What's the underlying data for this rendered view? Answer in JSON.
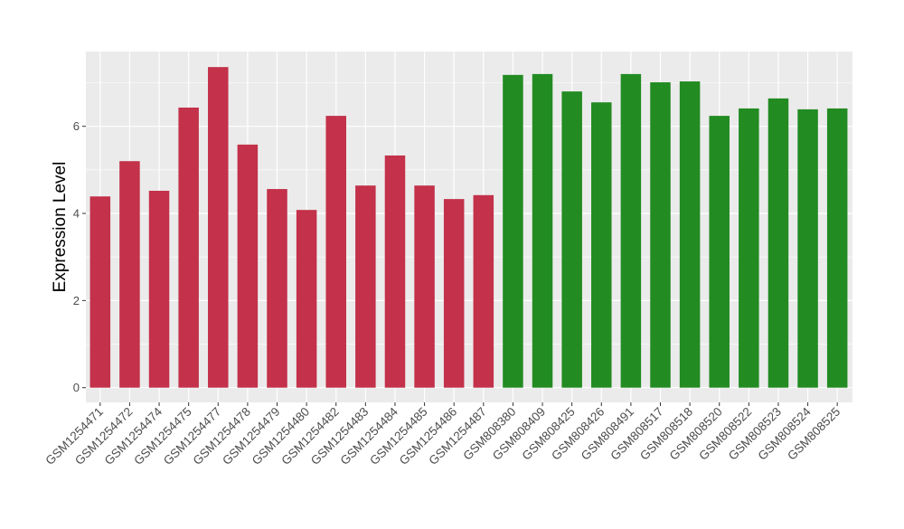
{
  "chart_data": {
    "type": "bar",
    "title": "",
    "xlabel": "",
    "ylabel": "Expression Level",
    "ylim": [
      0,
      7.7
    ],
    "yticks": [
      0,
      2,
      4,
      6
    ],
    "grid": true,
    "categories": [
      "GSM1254471",
      "GSM1254472",
      "GSM1254474",
      "GSM1254475",
      "GSM1254477",
      "GSM1254478",
      "GSM1254479",
      "GSM1254480",
      "GSM1254482",
      "GSM1254483",
      "GSM1254484",
      "GSM1254485",
      "GSM1254486",
      "GSM1254487",
      "GSM808380",
      "GSM808409",
      "GSM808425",
      "GSM808426",
      "GSM808491",
      "GSM808517",
      "GSM808518",
      "GSM808520",
      "GSM808522",
      "GSM808523",
      "GSM808524",
      "GSM808525"
    ],
    "values": [
      4.39,
      5.2,
      4.52,
      6.43,
      7.36,
      5.58,
      4.56,
      4.08,
      6.24,
      4.64,
      5.33,
      4.64,
      4.33,
      4.42,
      7.18,
      7.2,
      6.8,
      6.55,
      7.2,
      7.01,
      7.03,
      6.24,
      6.41,
      6.64,
      6.39,
      6.41
    ],
    "groups": [
      "red",
      "red",
      "red",
      "red",
      "red",
      "red",
      "red",
      "red",
      "red",
      "red",
      "red",
      "red",
      "red",
      "red",
      "green",
      "green",
      "green",
      "green",
      "green",
      "green",
      "green",
      "green",
      "green",
      "green",
      "green",
      "green"
    ],
    "colors": {
      "red": "#C3314A",
      "green": "#228B22",
      "panel": "#EBEBEB",
      "grid": "#FFFFFF"
    }
  }
}
